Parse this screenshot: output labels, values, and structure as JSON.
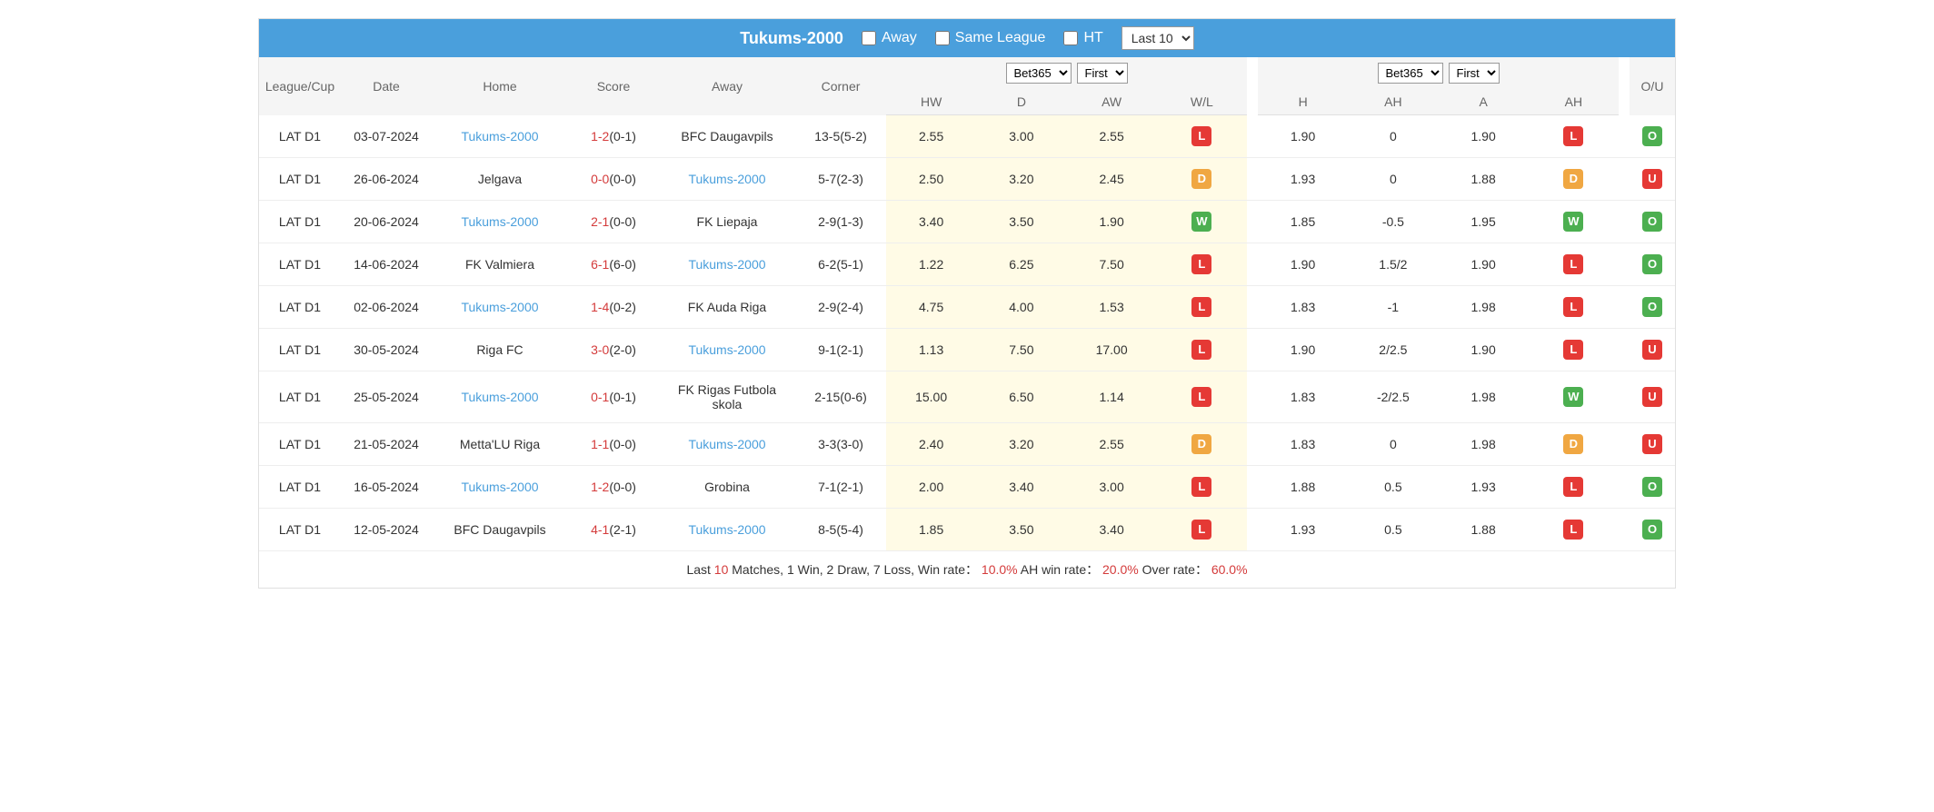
{
  "header": {
    "team_name": "Tukums-2000",
    "filters": {
      "away": "Away",
      "same_league": "Same League",
      "ht": "HT"
    },
    "last_select": "Last 10"
  },
  "columns": {
    "league": "League/Cup",
    "date": "Date",
    "home": "Home",
    "score": "Score",
    "away": "Away",
    "corner": "Corner",
    "ou": "O/U",
    "odds1_select1": "Bet365",
    "odds1_select2": "First",
    "odds2_select1": "Bet365",
    "odds2_select2": "First",
    "sub": {
      "hw": "HW",
      "d": "D",
      "aw": "AW",
      "wl": "W/L",
      "h": "H",
      "ah1": "AH",
      "a": "A",
      "ah2": "AH"
    }
  },
  "rows": [
    {
      "league": "LAT D1",
      "date": "03-07-2024",
      "home": "Tukums-2000",
      "home_hl": true,
      "score_main": "1-2",
      "score_half": "(0-1)",
      "away": "BFC Daugavpils",
      "away_hl": false,
      "corner": "13-5(5-2)",
      "hw": "2.55",
      "d": "3.00",
      "aw": "2.55",
      "wl": "L",
      "h": "1.90",
      "ah1": "0",
      "a": "1.90",
      "ah2": "L",
      "ou": "O"
    },
    {
      "league": "LAT D1",
      "date": "26-06-2024",
      "home": "Jelgava",
      "home_hl": false,
      "score_main": "0-0",
      "score_half": "(0-0)",
      "away": "Tukums-2000",
      "away_hl": true,
      "corner": "5-7(2-3)",
      "hw": "2.50",
      "d": "3.20",
      "aw": "2.45",
      "wl": "D",
      "h": "1.93",
      "ah1": "0",
      "a": "1.88",
      "ah2": "D",
      "ou": "U"
    },
    {
      "league": "LAT D1",
      "date": "20-06-2024",
      "home": "Tukums-2000",
      "home_hl": true,
      "score_main": "2-1",
      "score_half": "(0-0)",
      "away": "FK Liepaja",
      "away_hl": false,
      "corner": "2-9(1-3)",
      "hw": "3.40",
      "d": "3.50",
      "aw": "1.90",
      "wl": "W",
      "h": "1.85",
      "ah1": "-0.5",
      "a": "1.95",
      "ah2": "W",
      "ou": "O"
    },
    {
      "league": "LAT D1",
      "date": "14-06-2024",
      "home": "FK Valmiera",
      "home_hl": false,
      "score_main": "6-1",
      "score_half": "(6-0)",
      "away": "Tukums-2000",
      "away_hl": true,
      "corner": "6-2(5-1)",
      "hw": "1.22",
      "d": "6.25",
      "aw": "7.50",
      "wl": "L",
      "h": "1.90",
      "ah1": "1.5/2",
      "a": "1.90",
      "ah2": "L",
      "ou": "O"
    },
    {
      "league": "LAT D1",
      "date": "02-06-2024",
      "home": "Tukums-2000",
      "home_hl": true,
      "score_main": "1-4",
      "score_half": "(0-2)",
      "away": "FK Auda Riga",
      "away_hl": false,
      "corner": "2-9(2-4)",
      "hw": "4.75",
      "d": "4.00",
      "aw": "1.53",
      "wl": "L",
      "h": "1.83",
      "ah1": "-1",
      "a": "1.98",
      "ah2": "L",
      "ou": "O"
    },
    {
      "league": "LAT D1",
      "date": "30-05-2024",
      "home": "Riga FC",
      "home_hl": false,
      "score_main": "3-0",
      "score_half": "(2-0)",
      "away": "Tukums-2000",
      "away_hl": true,
      "corner": "9-1(2-1)",
      "hw": "1.13",
      "d": "7.50",
      "aw": "17.00",
      "wl": "L",
      "h": "1.90",
      "ah1": "2/2.5",
      "a": "1.90",
      "ah2": "L",
      "ou": "U"
    },
    {
      "league": "LAT D1",
      "date": "25-05-2024",
      "home": "Tukums-2000",
      "home_hl": true,
      "score_main": "0-1",
      "score_half": "(0-1)",
      "away": "FK Rigas Futbola skola",
      "away_hl": false,
      "corner": "2-15(0-6)",
      "hw": "15.00",
      "d": "6.50",
      "aw": "1.14",
      "wl": "L",
      "h": "1.83",
      "ah1": "-2/2.5",
      "a": "1.98",
      "ah2": "W",
      "ou": "U"
    },
    {
      "league": "LAT D1",
      "date": "21-05-2024",
      "home": "Metta'LU Riga",
      "home_hl": false,
      "score_main": "1-1",
      "score_half": "(0-0)",
      "away": "Tukums-2000",
      "away_hl": true,
      "corner": "3-3(3-0)",
      "hw": "2.40",
      "d": "3.20",
      "aw": "2.55",
      "wl": "D",
      "h": "1.83",
      "ah1": "0",
      "a": "1.98",
      "ah2": "D",
      "ou": "U"
    },
    {
      "league": "LAT D1",
      "date": "16-05-2024",
      "home": "Tukums-2000",
      "home_hl": true,
      "score_main": "1-2",
      "score_half": "(0-0)",
      "away": "Grobina",
      "away_hl": false,
      "corner": "7-1(2-1)",
      "hw": "2.00",
      "d": "3.40",
      "aw": "3.00",
      "wl": "L",
      "h": "1.88",
      "ah1": "0.5",
      "a": "1.93",
      "ah2": "L",
      "ou": "O"
    },
    {
      "league": "LAT D1",
      "date": "12-05-2024",
      "home": "BFC Daugavpils",
      "home_hl": false,
      "score_main": "4-1",
      "score_half": "(2-1)",
      "away": "Tukums-2000",
      "away_hl": true,
      "corner": "8-5(5-4)",
      "hw": "1.85",
      "d": "3.50",
      "aw": "3.40",
      "wl": "L",
      "h": "1.93",
      "ah1": "0.5",
      "a": "1.88",
      "ah2": "L",
      "ou": "O"
    }
  ],
  "summary": {
    "p1": "Last ",
    "p2": "10",
    "p3": " Matches, 1 Win, 2 Draw, 7 Loss, Win rate： ",
    "p4": "10.0%",
    "p5": " AH win rate： ",
    "p6": "20.0%",
    "p7": " Over rate： ",
    "p8": "60.0%"
  }
}
